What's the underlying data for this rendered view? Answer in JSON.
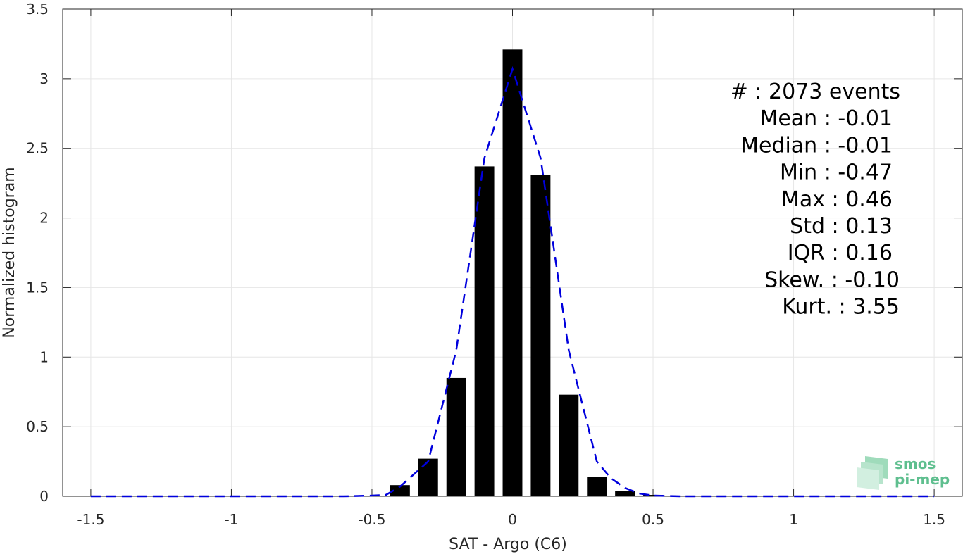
{
  "chart_data": {
    "type": "bar",
    "xlabel": "SAT - Argo (C6)",
    "ylabel": "Normalized histogram",
    "xlim": [
      -1.6,
      1.6
    ],
    "ylim": [
      0,
      3.5
    ],
    "x_ticks": [
      -1.5,
      -1,
      -0.5,
      0,
      0.5,
      1,
      1.5
    ],
    "x_tick_labels": [
      "-1.5",
      "-1",
      "-0.5",
      "0",
      "0.5",
      "1",
      "1.5"
    ],
    "y_ticks": [
      0,
      0.5,
      1,
      1.5,
      2,
      2.5,
      3,
      3.5
    ],
    "y_tick_labels": [
      "0",
      "0.5",
      "1",
      "1.5",
      "2",
      "2.5",
      "3",
      "3.5"
    ],
    "grid": true,
    "bar_width": 0.07,
    "bars": {
      "x": [
        -0.5,
        -0.4,
        -0.3,
        -0.2,
        -0.1,
        0.0,
        0.1,
        0.2,
        0.3,
        0.4,
        0.5
      ],
      "values": [
        0.005,
        0.08,
        0.27,
        0.85,
        2.37,
        3.21,
        2.31,
        0.73,
        0.14,
        0.04,
        0.01
      ],
      "color": "#000000"
    },
    "fit_curve": {
      "style": "dashed",
      "color": "#0000dd",
      "x": [
        -1.5,
        -1.0,
        -0.6,
        -0.5,
        -0.45,
        -0.4,
        -0.3,
        -0.2,
        -0.1,
        0.0,
        0.1,
        0.2,
        0.3,
        0.35,
        0.4,
        0.45,
        0.5,
        0.6,
        1.0,
        1.5
      ],
      "y": [
        0,
        0,
        0,
        0.005,
        0.01,
        0.07,
        0.25,
        1.05,
        2.43,
        3.07,
        2.43,
        1.05,
        0.25,
        0.13,
        0.06,
        0.02,
        0.005,
        0,
        0,
        0
      ]
    },
    "annotations": [
      "#  : 2073 events",
      "Mean : -0.01",
      "Median : -0.01",
      "Min : -0.47",
      "Max : 0.46",
      "Std : 0.13",
      "IQR : 0.16",
      "Skew. : -0.10",
      "Kurt. : 3.55"
    ]
  },
  "logo": {
    "line1": "smos",
    "line2": "pi-mep",
    "color": "#5fbf8f"
  }
}
